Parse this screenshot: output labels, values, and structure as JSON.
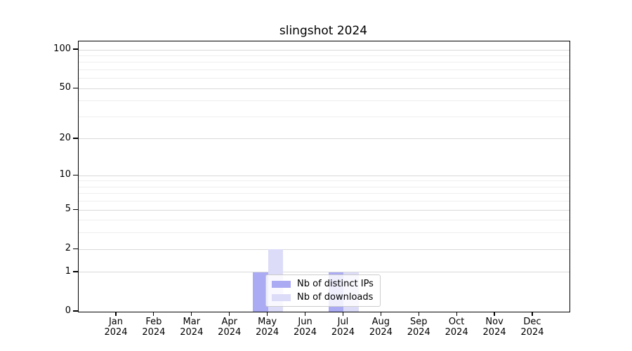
{
  "chart_data": {
    "type": "bar",
    "title": "slingshot 2024",
    "categories": [
      "Jan",
      "Feb",
      "Mar",
      "Apr",
      "May",
      "Jun",
      "Jul",
      "Aug",
      "Sep",
      "Oct",
      "Nov",
      "Dec"
    ],
    "year_label": "2024",
    "series": [
      {
        "name": "Nb of distinct IPs",
        "color": "#ababf3",
        "values": [
          0,
          0,
          0,
          0,
          1,
          0,
          1,
          0,
          0,
          0,
          0,
          0
        ]
      },
      {
        "name": "Nb of downloads",
        "color": "#dcdcf8",
        "values": [
          0,
          0,
          0,
          0,
          2,
          0,
          1,
          0,
          0,
          0,
          0,
          0
        ]
      }
    ],
    "y_axis": {
      "scale": "log1p",
      "major_ticks": [
        0,
        1,
        2,
        5,
        10,
        20,
        50,
        100
      ],
      "minor_ticks": [
        3,
        4,
        6,
        7,
        8,
        9,
        30,
        40,
        60,
        70,
        80,
        90
      ],
      "range_top_value": 100
    },
    "legend": {
      "position": "lower-center"
    },
    "grid": true
  },
  "colors": {
    "grid_major": "#d9d9d9",
    "grid_minor": "#eeeeee",
    "spine": "#000000",
    "legend_border": "#cccccc",
    "text": "#000000"
  }
}
